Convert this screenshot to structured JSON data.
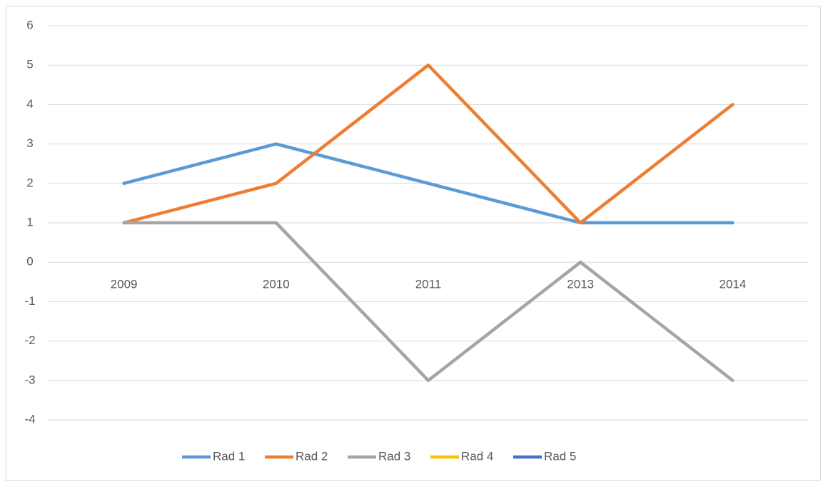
{
  "chart_data": {
    "type": "line",
    "categories": [
      "2009",
      "2010",
      "2011",
      "2013",
      "2014"
    ],
    "series": [
      {
        "name": "Rad 1",
        "color": "#5b9bd5",
        "values": [
          2,
          3,
          2,
          1,
          1
        ]
      },
      {
        "name": "Rad 2",
        "color": "#ed7d31",
        "values": [
          1,
          2,
          5,
          1,
          4
        ]
      },
      {
        "name": "Rad 3",
        "color": "#a5a5a5",
        "values": [
          1,
          1,
          -3,
          0,
          -3
        ]
      },
      {
        "name": "Rad 4",
        "color": "#ffc000",
        "values": [
          null,
          null,
          null,
          null,
          null
        ]
      },
      {
        "name": "Rad 5",
        "color": "#4472c4",
        "values": [
          null,
          null,
          null,
          null,
          null
        ]
      }
    ],
    "ylim": [
      -4,
      6
    ],
    "yticks": [
      -4,
      -3,
      -2,
      -1,
      0,
      1,
      2,
      3,
      4,
      5,
      6
    ],
    "grid": true,
    "legend": "bottom"
  }
}
